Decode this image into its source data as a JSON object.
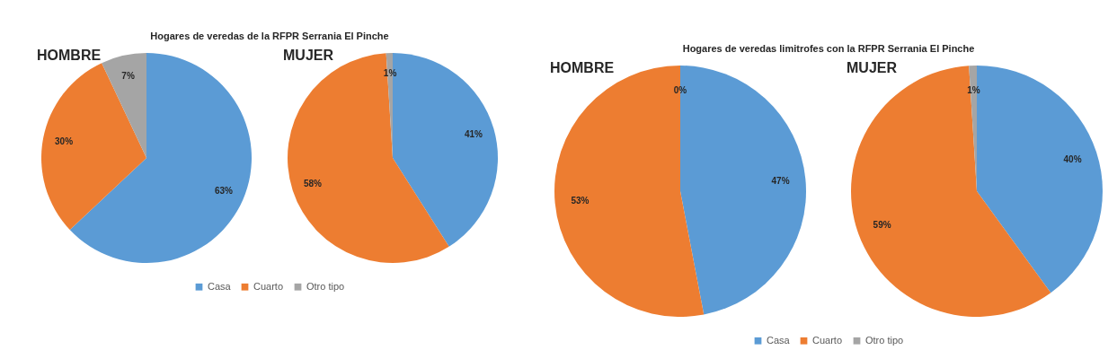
{
  "chart_data": [
    {
      "type": "pie",
      "title": "Hogares de veredas de la RFPR Serrania El Pinche",
      "categories": [
        "Casa",
        "Cuarto",
        "Otro tipo"
      ],
      "colors": [
        "#5b9bd5",
        "#ed7d31",
        "#a5a5a5"
      ],
      "legend": "bottom",
      "series": [
        {
          "name": "HOMBRE",
          "values": [
            63,
            30,
            7
          ],
          "value_labels": [
            "63%",
            "30%",
            "7%"
          ]
        },
        {
          "name": "MUJER",
          "values": [
            41,
            58,
            1
          ],
          "value_labels": [
            "41%",
            "58%",
            "1%"
          ]
        }
      ]
    },
    {
      "type": "pie",
      "title": "Hogares de veredas limitrofes con la RFPR Serrania El Pinche",
      "categories": [
        "Casa",
        "Cuarto",
        "Otro tipo"
      ],
      "colors": [
        "#5b9bd5",
        "#ed7d31",
        "#a5a5a5"
      ],
      "legend": "bottom",
      "series": [
        {
          "name": "HOMBRE",
          "values": [
            47,
            53,
            0
          ],
          "value_labels": [
            "47%",
            "53%",
            "0%"
          ]
        },
        {
          "name": "MUJER",
          "values": [
            40,
            59,
            1
          ],
          "value_labels": [
            "40%",
            "59%",
            "1%"
          ]
        }
      ]
    }
  ]
}
